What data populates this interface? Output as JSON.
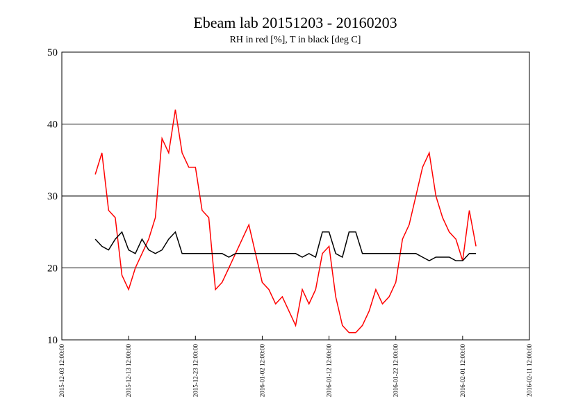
{
  "chart_data": {
    "type": "line",
    "title": "Ebeam lab 20151203 - 20160203",
    "subtitle": "RH in red [%], T in black [deg C]",
    "x": [
      "2015-12-08 12:00:00",
      "2015-12-09 12:00:00",
      "2015-12-10 12:00:00",
      "2015-12-11 12:00:00",
      "2015-12-12 12:00:00",
      "2015-12-13 12:00:00",
      "2015-12-14 12:00:00",
      "2015-12-15 12:00:00",
      "2015-12-16 12:00:00",
      "2015-12-17 12:00:00",
      "2015-12-18 12:00:00",
      "2015-12-19 12:00:00",
      "2015-12-20 12:00:00",
      "2015-12-21 12:00:00",
      "2015-12-22 12:00:00",
      "2015-12-23 12:00:00",
      "2015-12-24 12:00:00",
      "2015-12-25 12:00:00",
      "2015-12-26 12:00:00",
      "2015-12-27 12:00:00",
      "2015-12-28 12:00:00",
      "2015-12-29 12:00:00",
      "2015-12-30 12:00:00",
      "2015-12-31 12:00:00",
      "2016-01-01 12:00:00",
      "2016-01-02 12:00:00",
      "2016-01-03 12:00:00",
      "2016-01-04 12:00:00",
      "2016-01-05 12:00:00",
      "2016-01-06 12:00:00",
      "2016-01-07 12:00:00",
      "2016-01-08 12:00:00",
      "2016-01-09 12:00:00",
      "2016-01-10 12:00:00",
      "2016-01-11 12:00:00",
      "2016-01-12 12:00:00",
      "2016-01-13 12:00:00",
      "2016-01-14 12:00:00",
      "2016-01-15 12:00:00",
      "2016-01-16 12:00:00",
      "2016-01-17 12:00:00",
      "2016-01-18 12:00:00",
      "2016-01-19 12:00:00",
      "2016-01-20 12:00:00",
      "2016-01-21 12:00:00",
      "2016-01-22 12:00:00",
      "2016-01-23 12:00:00",
      "2016-01-24 12:00:00",
      "2016-01-25 12:00:00",
      "2016-01-26 12:00:00",
      "2016-01-27 12:00:00",
      "2016-01-28 12:00:00",
      "2016-01-29 12:00:00",
      "2016-01-30 12:00:00",
      "2016-01-31 12:00:00",
      "2016-02-01 12:00:00",
      "2016-02-02 12:00:00",
      "2016-02-03 12:00:00"
    ],
    "series": [
      {
        "color": "#ff0000",
        "values": [
          33,
          36,
          28,
          27,
          19,
          17,
          20,
          22,
          24,
          27,
          38,
          36,
          42,
          36,
          34,
          34,
          28,
          27,
          17,
          18,
          20,
          22,
          24,
          26,
          22,
          18,
          17,
          15,
          16,
          14,
          12,
          17,
          15,
          17,
          22,
          23,
          16,
          12,
          11,
          11,
          12,
          14,
          17,
          15,
          16,
          18,
          24,
          26,
          30,
          34,
          36,
          30,
          27,
          25,
          24,
          21,
          28,
          23
        ]
      },
      {
        "color": "#000000",
        "values": [
          24,
          23,
          22.5,
          24,
          25,
          22.5,
          22,
          24,
          22.5,
          22,
          22.5,
          24,
          25,
          22,
          22,
          22,
          22,
          22,
          22,
          22,
          21.5,
          22,
          22,
          22,
          22,
          22,
          22,
          22,
          22,
          22,
          22,
          21.5,
          22,
          21.5,
          25,
          25,
          22,
          21.5,
          25,
          25,
          22,
          22,
          22,
          22,
          22,
          22,
          22,
          22,
          22,
          21.5,
          21,
          21.5,
          21.5,
          21.5,
          21,
          21,
          22,
          22
        ]
      }
    ],
    "xlim": [
      "2015-12-03 12:00:00",
      "2016-02-11 12:00:00"
    ],
    "xticks": [
      "2015-12-03 12:00:00",
      "2015-12-13 12:00:00",
      "2015-12-23 12:00:00",
      "2016-01-02 12:00:00",
      "2016-01-12 12:00:00",
      "2016-01-22 12:00:00",
      "2016-02-01 12:00:00",
      "2016-02-11 12:00:00"
    ],
    "ylim": [
      10,
      50
    ],
    "yticks": [
      10,
      20,
      30,
      40,
      50
    ],
    "grid": true
  }
}
